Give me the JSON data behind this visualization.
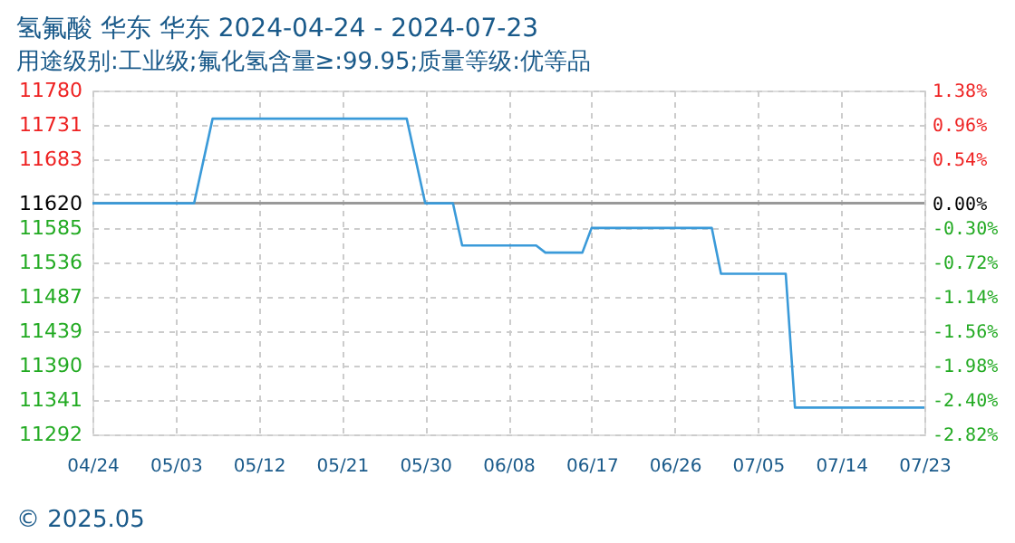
{
  "chart_data": {
    "type": "line",
    "title": "氢氟酸 华东 华东 2024-04-24 - 2024-07-23",
    "subtitle": "用途级别:工业级;氟化氢含量≥:99.95;质量等级:优等品",
    "x": [
      "2024-04-24",
      "2024-05-05",
      "2024-05-07",
      "2024-05-28",
      "2024-05-30",
      "2024-06-02",
      "2024-06-03",
      "2024-06-11",
      "2024-06-12",
      "2024-06-16",
      "2024-06-17",
      "2024-06-30",
      "2024-07-01",
      "2024-07-08",
      "2024-07-09",
      "2024-07-23"
    ],
    "series": [
      {
        "color": "#3a9ad9",
        "values": [
          11620,
          11620,
          11740,
          11740,
          11620,
          11620,
          11560,
          11560,
          11550,
          11550,
          11585,
          11585,
          11520,
          11520,
          11330,
          11330
        ]
      }
    ],
    "xlim": [
      "2024-04-24",
      "2024-07-23"
    ],
    "xticks": [
      {
        "value": "2024-04-24",
        "label": "04/24"
      },
      {
        "value": "2024-05-03",
        "label": "05/03"
      },
      {
        "value": "2024-05-12",
        "label": "05/12"
      },
      {
        "value": "2024-05-21",
        "label": "05/21"
      },
      {
        "value": "2024-05-30",
        "label": "05/30"
      },
      {
        "value": "2024-06-08",
        "label": "06/08"
      },
      {
        "value": "2024-06-17",
        "label": "06/17"
      },
      {
        "value": "2024-06-26",
        "label": "06/26"
      },
      {
        "value": "2024-07-05",
        "label": "07/05"
      },
      {
        "value": "2024-07-14",
        "label": "07/14"
      },
      {
        "value": "2024-07-23",
        "label": "07/23"
      }
    ],
    "ylim": [
      11292,
      11780
    ],
    "yticks": [
      11780,
      11731,
      11683,
      {
        "value": 11634,
        "label": null
      },
      11620,
      11585,
      11536,
      11487,
      11439,
      11390,
      11341,
      11292
    ],
    "y2lim": [
      -2.82,
      1.38
    ],
    "y2ticks": [
      {
        "value": 1.38,
        "label": "1.38%"
      },
      {
        "value": 0.96,
        "label": "0.96%"
      },
      {
        "value": 0.54,
        "label": "0.54%"
      },
      {
        "value": 0,
        "label": "0.00%"
      },
      {
        "value": -0.3,
        "label": "-0.30%"
      },
      {
        "value": -0.72,
        "label": "-0.72%"
      },
      {
        "value": -1.14,
        "label": "-1.14%"
      },
      {
        "value": -1.56,
        "label": "-1.56%"
      },
      {
        "value": -1.98,
        "label": "-1.98%"
      },
      {
        "value": -2.4,
        "label": "-2.40%"
      },
      {
        "value": -2.82,
        "label": "-2.82%"
      }
    ],
    "ref_lines": [
      {
        "axis": "y",
        "value": 11620,
        "color": "#999999",
        "line_style": "solid"
      }
    ],
    "grid": true,
    "marker": "none",
    "line_style": "solid",
    "annotations": [
      "© 2025.05"
    ]
  }
}
